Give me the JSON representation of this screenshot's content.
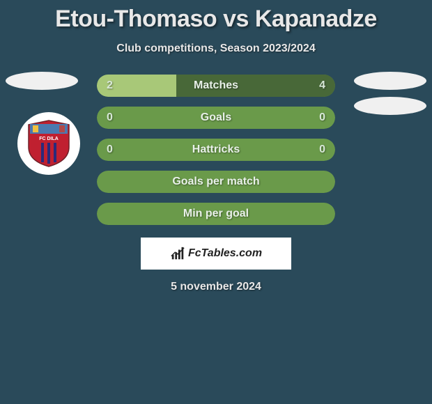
{
  "background_color": "#2a4a5a",
  "title": "Etou-Thomaso vs Kapanadze",
  "subtitle": "Club competitions, Season 2023/2024",
  "date": "5 november 2024",
  "brand": "FcTables.com",
  "club_badge": {
    "top_color": "#4a7ab0",
    "main_color": "#c02030",
    "stripe_color": "#2a2a7a",
    "accent_color": "#f0c040",
    "text": "FC DILA"
  },
  "bar_style": {
    "height": 32,
    "border_radius": 16,
    "empty_color": "#6a9a4a",
    "left_fill_color": "#a8c878",
    "right_fill_color": "#486838",
    "label_color": "#e8f0e8",
    "value_color": "#d8e8d8",
    "font_size": 16
  },
  "bars": [
    {
      "label": "Matches",
      "left": "2",
      "right": "4",
      "left_pct": 33.3,
      "right_pct": 66.7
    },
    {
      "label": "Goals",
      "left": "0",
      "right": "0",
      "left_pct": 0,
      "right_pct": 0
    },
    {
      "label": "Hattricks",
      "left": "0",
      "right": "0",
      "left_pct": 0,
      "right_pct": 0
    },
    {
      "label": "Goals per match",
      "left": "",
      "right": "",
      "left_pct": 0,
      "right_pct": 0
    },
    {
      "label": "Min per goal",
      "left": "",
      "right": "",
      "left_pct": 0,
      "right_pct": 0
    }
  ],
  "ovals": {
    "left_count": 1,
    "right_count": 2,
    "color": "#f0f0f0"
  }
}
